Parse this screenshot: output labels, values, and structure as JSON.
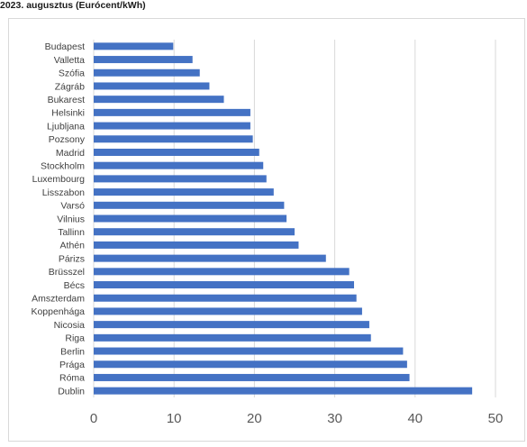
{
  "header": {
    "caption": "2023. augusztus (Eurócent/kWh)"
  },
  "colors": {
    "bar": "#4472c4",
    "grid": "#d9d9d9",
    "text": "#404040"
  },
  "chart_data": {
    "type": "bar",
    "orientation": "horizontal",
    "title": "",
    "xlabel": "",
    "ylabel": "",
    "xlim": [
      0,
      50
    ],
    "xticks": [
      0,
      10,
      20,
      30,
      40,
      50
    ],
    "grid": "vertical",
    "categories": [
      "Budapest",
      "Valletta",
      "Szófia",
      "Zágráb",
      "Bukarest",
      "Helsinki",
      "Ljubljana",
      "Pozsony",
      "Madrid",
      "Stockholm",
      "Luxembourg",
      "Lisszabon",
      "Varsó",
      "Vilnius",
      "Tallinn",
      "Athén",
      "Párizs",
      "Brüsszel",
      "Bécs",
      "Amszterdam",
      "Koppenhága",
      "Nicosia",
      "Riga",
      "Berlin",
      "Prága",
      "Róma",
      "Dublin"
    ],
    "values": [
      9.9,
      12.3,
      13.2,
      14.4,
      16.2,
      19.5,
      19.5,
      19.8,
      20.6,
      21.1,
      21.5,
      22.4,
      23.7,
      24.0,
      25.0,
      25.5,
      28.9,
      31.8,
      32.4,
      32.7,
      33.4,
      34.3,
      34.5,
      38.5,
      39.0,
      39.3,
      47.1
    ]
  }
}
